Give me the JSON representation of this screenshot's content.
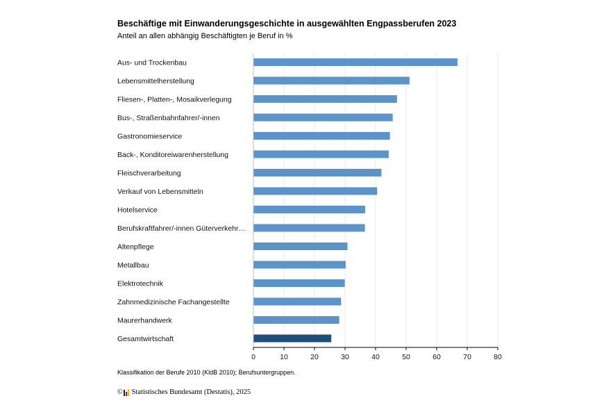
{
  "colors": {
    "bar": "#5b93cb",
    "highlight": "#1f4e7e",
    "grid": "#e8e8e8",
    "axis": "#000000"
  },
  "chart_data": {
    "type": "bar",
    "orientation": "horizontal",
    "title": "Beschäftige mit Einwanderungsgeschichte in ausgewählten Engpassberufen 2023",
    "subtitle": "Anteil an allen abhängig Beschäftigten je Beruf in %",
    "categories": [
      "Aus- und Trockenbau",
      "Lebensmittelherstellung",
      "Fliesen-, Platten-, Mosaikverlegung",
      "Bus-, Straßenbahnfahrer/-innen",
      "Gastronomieservice",
      "Back-, Konditoreiwarenherstellung",
      "Fleischverarbeitung",
      "Verkauf von Lebensmitteln",
      "Hotelservice",
      "Berufskraftfahrer/-innen Güterverkehr…",
      "Altenpflege",
      "Metallbau",
      "Elektrotechnik",
      "Zahnmedizinische Fachangestellte",
      "Maurerhandwerk",
      "Gesamtwirtschaft"
    ],
    "values": [
      66.8,
      51.1,
      47.0,
      45.6,
      44.7,
      44.3,
      41.9,
      40.5,
      36.6,
      36.5,
      30.8,
      30.2,
      29.9,
      28.7,
      28.1,
      25.5
    ],
    "highlight_category": "Gesamtwirtschaft",
    "xlim": [
      0,
      80
    ],
    "xticks": [
      0,
      10,
      20,
      30,
      40,
      50,
      60,
      70,
      80
    ],
    "grid": "vertical",
    "legend": "none"
  },
  "footer": {
    "note": "Klassifikation der Berufe 2010 (KldB 2010); Berufsuntergruppen.",
    "copyright_symbol": "©",
    "source": "Statistisches Bundesamt (Destatis), 2025"
  }
}
